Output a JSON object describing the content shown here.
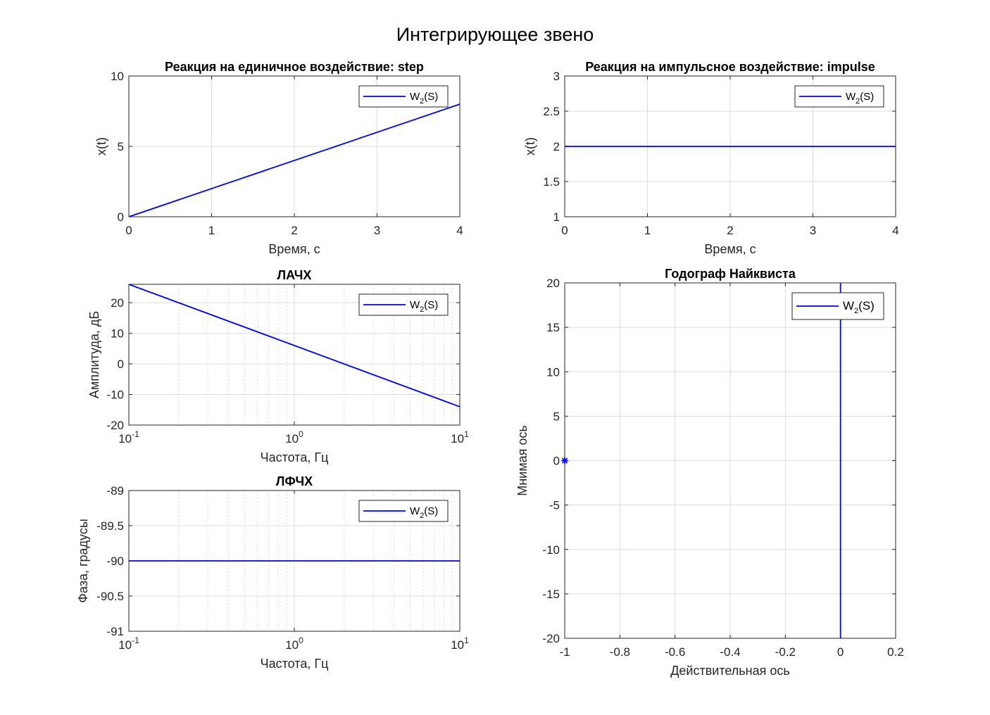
{
  "figure": {
    "title": "Интегрирующее звено"
  },
  "colors": {
    "series": "#0000ff",
    "axis": "#262626",
    "grid": "#dcdcdc"
  },
  "chart_data": [
    {
      "id": "step",
      "type": "line",
      "title": "Реакция на единичное воздействие: step",
      "xlabel": "Время, с",
      "ylabel": "x(t)",
      "xscale": "linear",
      "xlim": [
        0,
        4
      ],
      "ylim": [
        0,
        10
      ],
      "xticks": [
        0,
        1,
        2,
        3,
        4
      ],
      "yticks": [
        0,
        5,
        10
      ],
      "grid": true,
      "legend": {
        "placement": "top-right",
        "entries": [
          {
            "name": "W",
            "sub": "2",
            "suffix": "(S)"
          }
        ]
      },
      "series": [
        {
          "name": "W2(S)",
          "x": [
            0,
            4
          ],
          "y": [
            0,
            8
          ]
        }
      ]
    },
    {
      "id": "impulse",
      "type": "line",
      "title": "Реакция на импульсное воздействие: impulse",
      "xlabel": "Время, с",
      "ylabel": "x(t)",
      "xscale": "linear",
      "xlim": [
        0,
        4
      ],
      "ylim": [
        1,
        3
      ],
      "xticks": [
        0,
        1,
        2,
        3,
        4
      ],
      "yticks": [
        1,
        1.5,
        2,
        2.5,
        3
      ],
      "grid": true,
      "legend": {
        "placement": "top-right",
        "entries": [
          {
            "name": "W",
            "sub": "2",
            "suffix": "(S)"
          }
        ]
      },
      "series": [
        {
          "name": "W2(S)",
          "x": [
            0,
            4
          ],
          "y": [
            2,
            2
          ]
        }
      ]
    },
    {
      "id": "lach",
      "type": "line",
      "title": "ЛАЧХ",
      "xlabel": "Частота, Гц",
      "ylabel": "Амплитуда, дБ",
      "xscale": "log",
      "xlim": [
        0.1,
        10
      ],
      "ylim": [
        -20,
        26
      ],
      "xticks": [
        0.1,
        1,
        10
      ],
      "yticks": [
        -20,
        -10,
        0,
        10,
        20
      ],
      "grid": true,
      "legend": {
        "placement": "top-right",
        "entries": [
          {
            "name": "W",
            "sub": "2",
            "suffix": "(S)"
          }
        ]
      },
      "series": [
        {
          "name": "W2(S)",
          "x": [
            0.1,
            10
          ],
          "y": [
            26,
            -14
          ]
        }
      ]
    },
    {
      "id": "lfch",
      "type": "line",
      "title": "ЛФЧХ",
      "xlabel": "Частота, Гц",
      "ylabel": "Фаза, градусы",
      "xscale": "log",
      "xlim": [
        0.1,
        10
      ],
      "ylim": [
        -91,
        -89
      ],
      "xticks": [
        0.1,
        1,
        10
      ],
      "yticks": [
        -91,
        -90.5,
        -90,
        -89.5,
        -89
      ],
      "grid": true,
      "legend": {
        "placement": "top-right",
        "entries": [
          {
            "name": "W",
            "sub": "2",
            "suffix": "(S)"
          }
        ]
      },
      "series": [
        {
          "name": "W2(S)",
          "x": [
            0.1,
            10
          ],
          "y": [
            -90,
            -90
          ]
        }
      ]
    },
    {
      "id": "nyquist",
      "type": "line",
      "title": "Годограф Найквиста",
      "xlabel": "Действительная ось",
      "ylabel": "Мнимая ось",
      "xscale": "linear",
      "xlim": [
        -1,
        0.2
      ],
      "ylim": [
        -20,
        20
      ],
      "xticks": [
        -1,
        -0.8,
        -0.6,
        -0.4,
        -0.2,
        0,
        0.2
      ],
      "yticks": [
        -20,
        -15,
        -10,
        -5,
        0,
        5,
        10,
        15,
        20
      ],
      "grid": true,
      "legend": {
        "placement": "top-right",
        "entries": [
          {
            "name": "W",
            "sub": "2",
            "suffix": "(S)"
          }
        ]
      },
      "series": [
        {
          "name": "W2(S)",
          "x": [
            0,
            0
          ],
          "y": [
            -20,
            20
          ]
        }
      ],
      "markers": [
        {
          "x": -1,
          "y": 0,
          "symbol": "*"
        }
      ]
    }
  ]
}
